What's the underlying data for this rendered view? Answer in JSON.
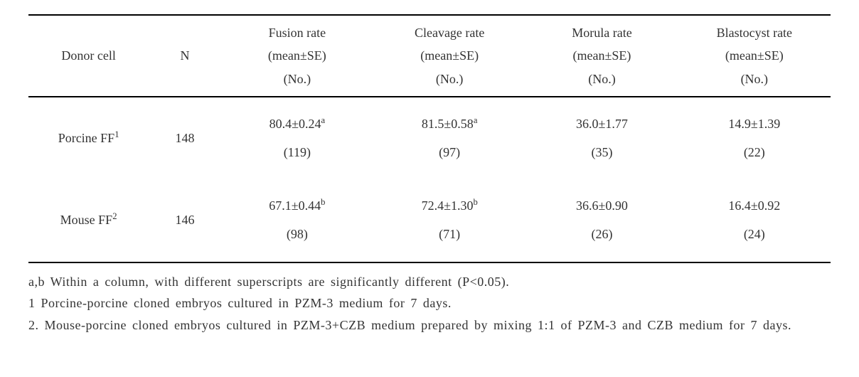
{
  "table": {
    "columns": [
      {
        "label": "Donor cell",
        "sublabel": "",
        "sublabel2": ""
      },
      {
        "label": "N",
        "sublabel": "",
        "sublabel2": ""
      },
      {
        "label": "Fusion rate",
        "sublabel": "(mean±SE)",
        "sublabel2": "(No.)"
      },
      {
        "label": "Cleavage rate",
        "sublabel": "(mean±SE)",
        "sublabel2": "(No.)"
      },
      {
        "label": "Morula rate",
        "sublabel": "(mean±SE)",
        "sublabel2": "(No.)"
      },
      {
        "label": "Blastocyst rate",
        "sublabel": "(mean±SE)",
        "sublabel2": "(No.)"
      }
    ],
    "rows": [
      {
        "donor_cell": "Porcine FF",
        "donor_sup": "1",
        "n": "148",
        "fusion_mean": "80.4±0.24",
        "fusion_sup": "a",
        "fusion_no": "(119)",
        "cleavage_mean": "81.5±0.58",
        "cleavage_sup": "a",
        "cleavage_no": "(97)",
        "morula_mean": "36.0±1.77",
        "morula_sup": "",
        "morula_no": "(35)",
        "blastocyst_mean": "14.9±1.39",
        "blastocyst_sup": "",
        "blastocyst_no": "(22)"
      },
      {
        "donor_cell": "Mouse FF",
        "donor_sup": "2",
        "n": "146",
        "fusion_mean": "67.1±0.44",
        "fusion_sup": "b",
        "fusion_no": "(98)",
        "cleavage_mean": "72.4±1.30",
        "cleavage_sup": "b",
        "cleavage_no": "(71)",
        "morula_mean": "36.6±0.90",
        "morula_sup": "",
        "morula_no": "(26)",
        "blastocyst_mean": "16.4±0.92",
        "blastocyst_sup": "",
        "blastocyst_no": "(24)"
      }
    ],
    "border_color": "#000000",
    "background_color": "#ffffff",
    "text_color": "#333333",
    "header_fontsize": 18,
    "cell_fontsize": 18
  },
  "footnotes": [
    "a,b Within a column, with different superscripts are significantly different (P<0.05).",
    "1 Porcine-porcine cloned embryos cultured in PZM-3 medium for 7 days.",
    "2. Mouse-porcine cloned embryos cultured in PZM-3+CZB medium prepared by mixing 1:1 of PZM-3 and CZB medium for 7 days."
  ]
}
